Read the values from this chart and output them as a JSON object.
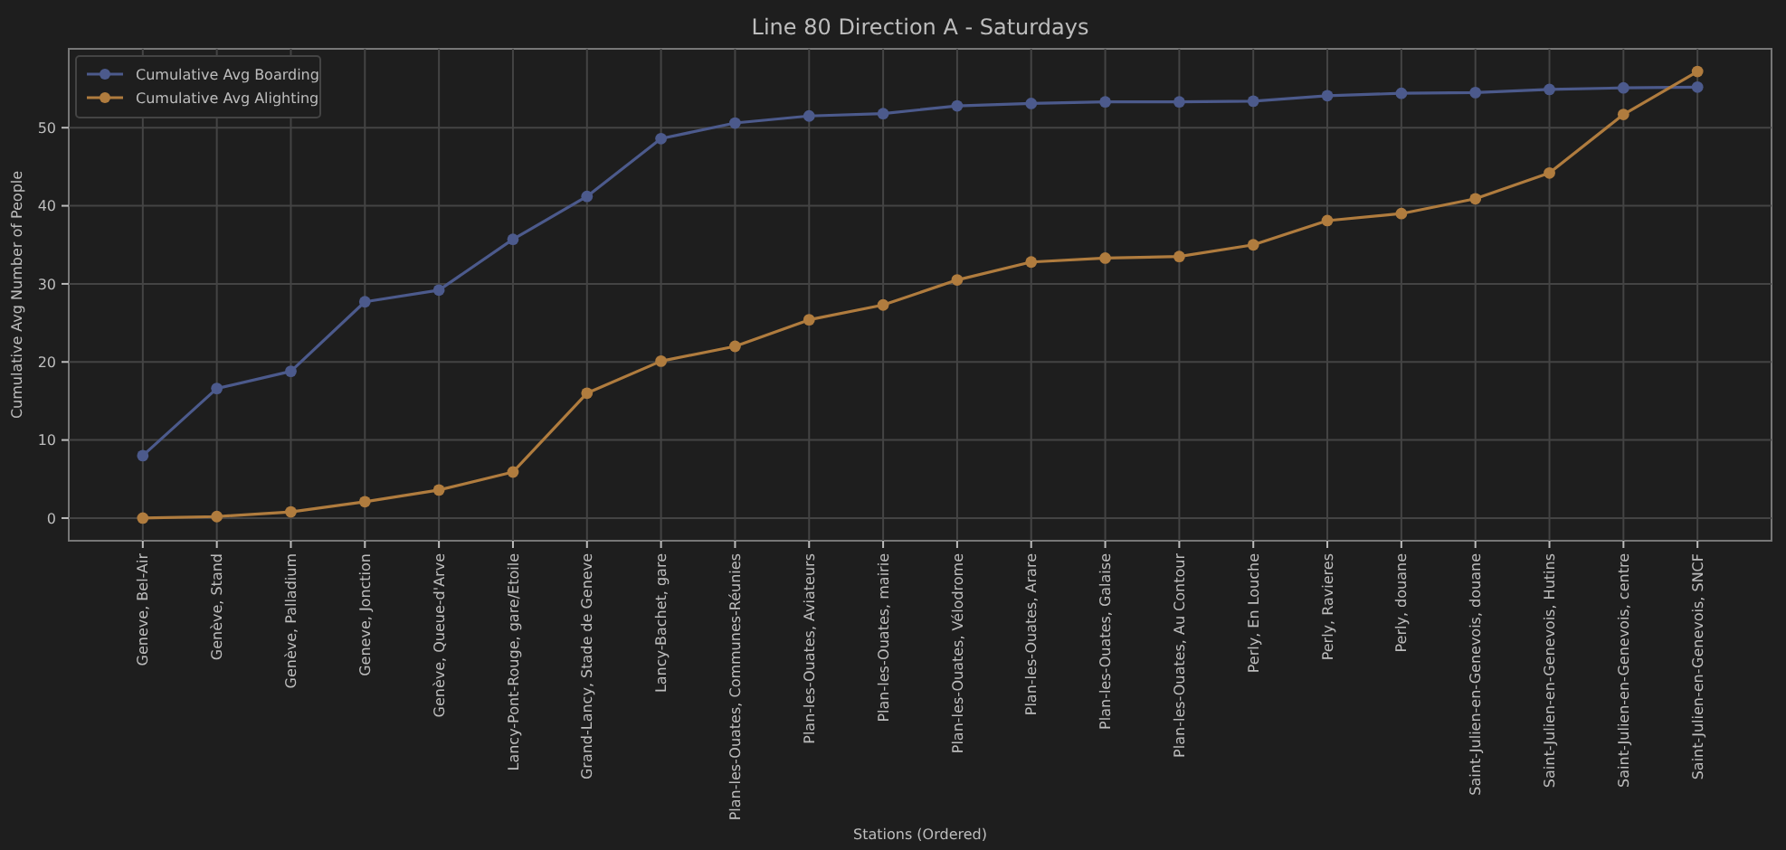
{
  "chart_data": {
    "type": "line",
    "title": "Line 80 Direction A - Saturdays",
    "xlabel": "Stations (Ordered)",
    "ylabel": "Cumulative Avg Number of People",
    "categories": [
      "Geneve, Bel-Air",
      "Genève, Stand",
      "Genève, Palladium",
      "Geneve, Jonction",
      "Genève, Queue-d'Arve",
      "Lancy-Pont-Rouge, gare/Etoile",
      "Grand-Lancy, Stade de Geneve",
      "Lancy-Bachet, gare",
      "Plan-les-Ouates, Communes-Réunies",
      "Plan-les-Ouates, Aviateurs",
      "Plan-les-Ouates, mairie",
      "Plan-les-Ouates, Vélodrome",
      "Plan-les-Ouates, Arare",
      "Plan-les-Ouates, Galaise",
      "Plan-les-Ouates, Au Contour",
      "Perly, En Louche",
      "Perly, Ravieres",
      "Perly, douane",
      "Saint-Julien-en-Genevois, douane",
      "Saint-Julien-en-Genevois, Hutins",
      "Saint-Julien-en-Genevois, centre",
      "Saint-Julien-en-Genevois, SNCF"
    ],
    "series": [
      {
        "name": "Cumulative Avg Boarding",
        "color": "#4c5a8c",
        "values": [
          8,
          16.6,
          18.8,
          27.7,
          29.2,
          35.7,
          41.2,
          48.6,
          50.6,
          51.5,
          51.8,
          52.8,
          53.1,
          53.3,
          53.3,
          53.4,
          54.1,
          54.4,
          54.5,
          54.9,
          55.1,
          55.2
        ]
      },
      {
        "name": "Cumulative Avg Alighting",
        "color": "#b07c3e",
        "values": [
          0,
          0.2,
          0.8,
          2.1,
          3.6,
          5.9,
          16,
          20.1,
          22,
          25.4,
          27.3,
          30.5,
          32.8,
          33.3,
          33.5,
          35.0,
          38.1,
          39.0,
          40.9,
          44.2,
          51.7,
          57.2
        ]
      }
    ],
    "ylim": [
      -2.9,
      60.1
    ],
    "yticks": [
      0,
      10,
      20,
      30,
      40,
      50
    ],
    "grid": true,
    "legend": "top left",
    "marker": "circle",
    "line_style": "solid"
  }
}
